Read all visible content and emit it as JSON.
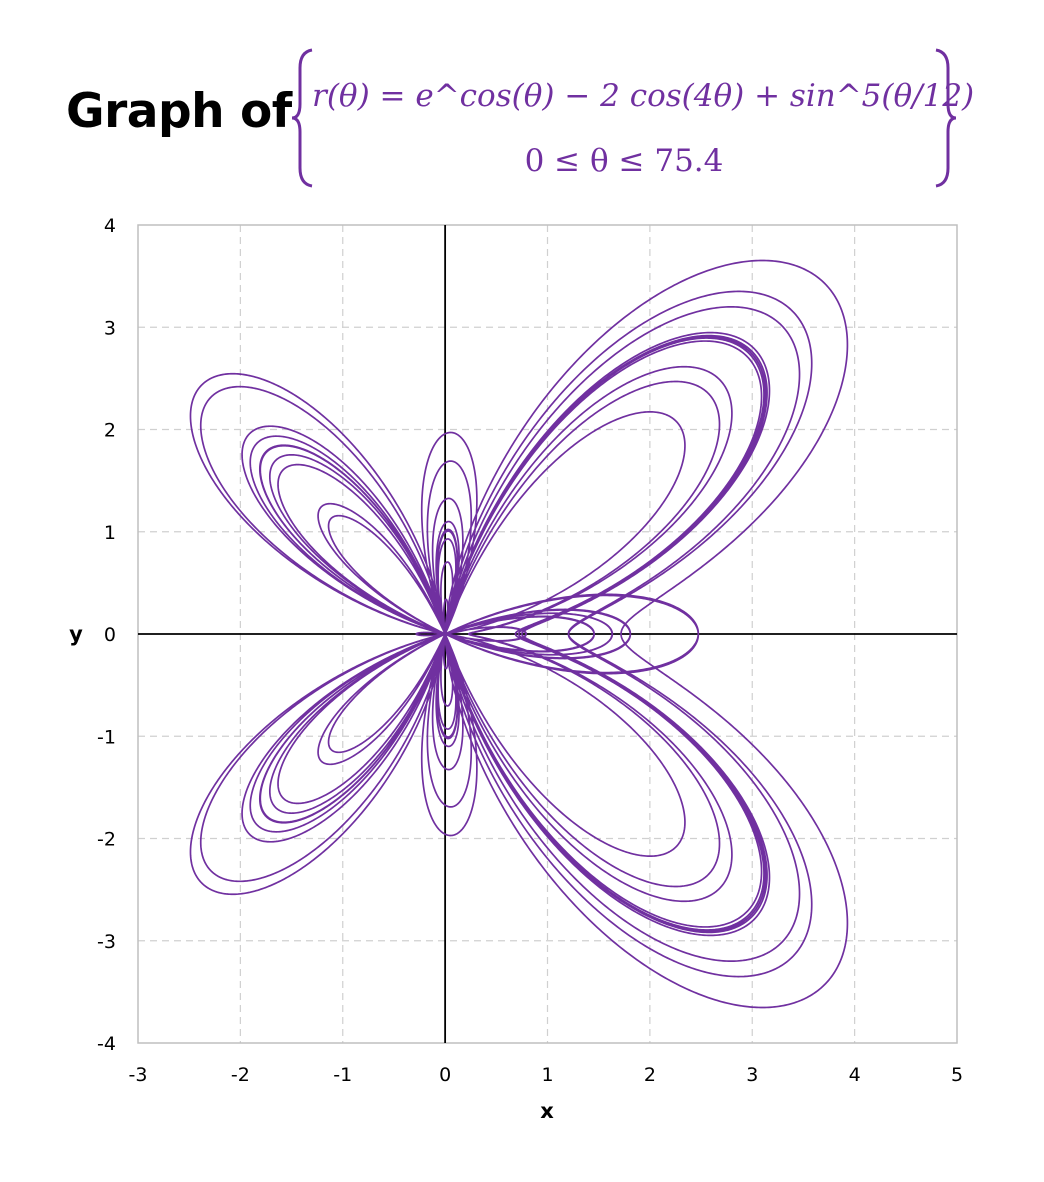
{
  "title": {
    "lead": "Graph of",
    "equation": "r(θ) =  e^cos(θ)  − 2 cos(4θ) + sin^5(θ/12)",
    "domain": "0 ≤ θ ≤ 75.4"
  },
  "colors": {
    "curve": "#7030a0",
    "grid": "#d0d0d0",
    "axis": "#000000",
    "frame": "#bfbfbf"
  },
  "chart_data": {
    "type": "line",
    "subtype": "polar-parametric",
    "title": "Graph of r(θ) = e^cos(θ) − 2 cos(4θ) + sin^5(θ/12), 0 ≤ θ ≤ 75.4",
    "function": "r(theta) = exp(cos(theta)) - 2*cos(4*theta) + sin(theta/12)^5",
    "theta_range": [
      0,
      75.4
    ],
    "xlabel": "x",
    "ylabel": "y",
    "xlim": [
      -3,
      5
    ],
    "ylim": [
      -4,
      4
    ],
    "x_ticks": [
      "-3",
      "-2",
      "-1",
      "0",
      "1",
      "2",
      "3",
      "4",
      "5"
    ],
    "y_ticks": [
      "4",
      "3",
      "2",
      "1",
      "0",
      "-1",
      "-2",
      "-3",
      "-4"
    ],
    "grid": true,
    "legend": "none",
    "series": [
      {
        "color": "#7030a0",
        "x": [],
        "y": []
      }
    ]
  }
}
